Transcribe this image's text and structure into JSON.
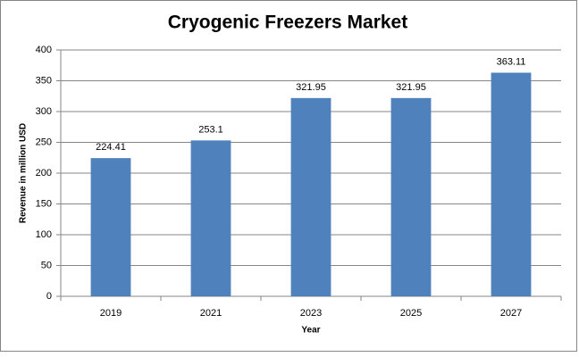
{
  "chart_data": {
    "type": "bar",
    "title": "Cryogenic Freezers Market",
    "x_label": "Year",
    "y_label": "Revenue in million USD",
    "categories": [
      "2019",
      "2021",
      "2023",
      "2025",
      "2027"
    ],
    "values": [
      224.41,
      253.1,
      321.95,
      321.95,
      363.11
    ],
    "color": "#4f81bd",
    "ylim": [
      0,
      400
    ],
    "yticks": [
      0,
      50,
      100,
      150,
      200,
      250,
      300,
      350,
      400
    ],
    "grid": true
  }
}
